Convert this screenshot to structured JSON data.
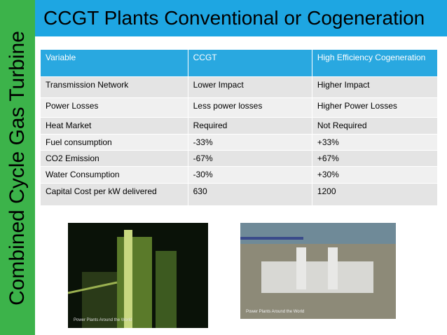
{
  "side_title": "Combined Cycle Gas Turbine",
  "header": {
    "title": "CCGT Plants Conventional or Cogeneration"
  },
  "table": {
    "columns": [
      "Variable",
      "CCGT",
      "High Efficiency Cogeneration"
    ],
    "rows": [
      [
        "Transmission Network",
        "Lower Impact",
        "Higher Impact"
      ],
      [
        "Power Losses",
        "Less power losses",
        "Higher Power Losses"
      ],
      [
        "Heat Market",
        "Required",
        "Not Required"
      ],
      [
        "Fuel consumption",
        "-33%",
        "+33%"
      ],
      [
        "CO2 Emission",
        "-67%",
        "+67%"
      ],
      [
        "Water Consumption",
        "-30%",
        "+30%"
      ],
      [
        "Capital Cost per kW delivered",
        "630",
        "1200"
      ]
    ]
  },
  "images": [
    {
      "caption": "Power Plants Around the World"
    },
    {
      "caption": "Power Plants Around the World"
    }
  ]
}
